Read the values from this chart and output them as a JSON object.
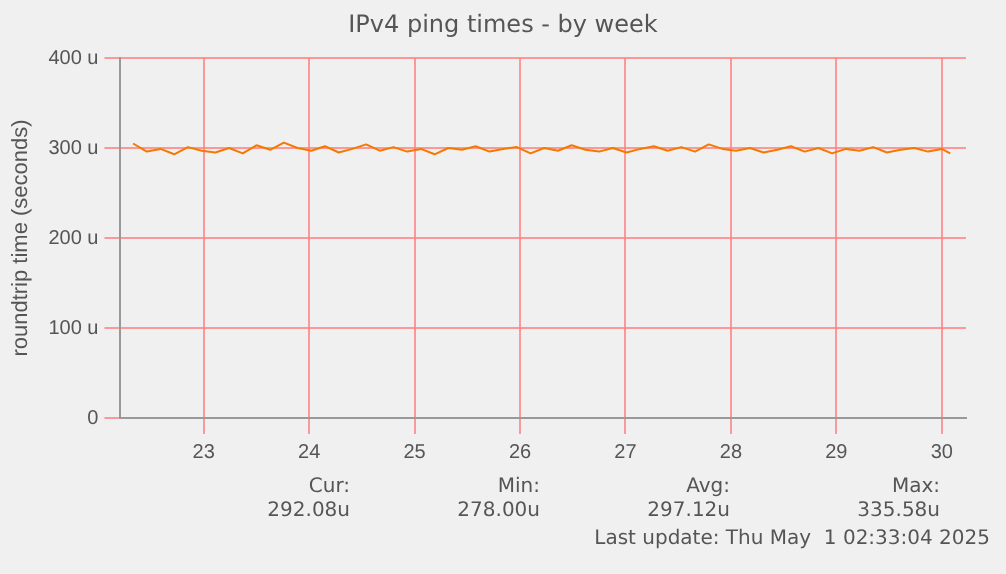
{
  "chart_data": {
    "type": "line",
    "title": "IPv4 ping times - by week",
    "ylabel": "roundtrip time (seconds)",
    "x": [
      22.83,
      22.96,
      23.09,
      23.22,
      23.35,
      23.48,
      23.61,
      23.74,
      23.87,
      24.0,
      24.13,
      24.26,
      24.39,
      24.52,
      24.65,
      24.78,
      24.91,
      25.04,
      25.17,
      25.3,
      25.43,
      25.56,
      25.69,
      25.82,
      25.95,
      26.08,
      26.21,
      26.34,
      26.47,
      26.6,
      26.73,
      26.86,
      26.99,
      27.12,
      27.25,
      27.38,
      27.51,
      27.64,
      27.77,
      27.9,
      28.03,
      28.16,
      28.29,
      28.42,
      28.55,
      28.68,
      28.81,
      28.94,
      29.07,
      29.2,
      29.33,
      29.46,
      29.59,
      29.72,
      29.85,
      29.98,
      30.11,
      30.24,
      30.37,
      30.5,
      30.58
    ],
    "series": [
      {
        "color": "#f57900",
        "values": [
          305,
          296,
          299,
          293,
          301,
          297,
          295,
          300,
          294,
          303,
          298,
          306,
          300,
          297,
          302,
          295,
          299,
          304,
          297,
          301,
          296,
          299,
          293,
          300,
          298,
          302,
          296,
          299,
          301,
          294,
          300,
          297,
          303,
          298,
          296,
          300,
          295,
          299,
          302,
          297,
          301,
          296,
          304,
          299,
          297,
          300,
          295,
          298,
          302,
          296,
          300,
          294,
          299,
          297,
          301,
          295,
          298,
          300,
          296,
          299,
          294
        ]
      }
    ],
    "xlim": [
      22.71,
      30.73
    ],
    "xticks": [
      {
        "value": 23.5,
        "label": "23"
      },
      {
        "value": 24.5,
        "label": "24"
      },
      {
        "value": 25.5,
        "label": "25"
      },
      {
        "value": 26.5,
        "label": "26"
      },
      {
        "value": 27.5,
        "label": "27"
      },
      {
        "value": 28.5,
        "label": "28"
      },
      {
        "value": 29.5,
        "label": "29"
      },
      {
        "value": 30.5,
        "label": "30"
      }
    ],
    "ylim": [
      0,
      400
    ],
    "yticks": [
      {
        "value": 0,
        "label": "0"
      },
      {
        "value": 100,
        "label": "100 u"
      },
      {
        "value": 200,
        "label": "200 u"
      },
      {
        "value": 300,
        "label": "300 u"
      },
      {
        "value": 400,
        "label": "400 u"
      }
    ],
    "grid": true,
    "marker": "none",
    "line_style": "solid",
    "legend": false,
    "annotations": [
      "Cur:",
      "292.08u",
      "Min:",
      "278.00u",
      "Avg:",
      "297.12u",
      "Max:",
      "335.58u",
      "Last update: Thu May  1 02:33:04 2025"
    ]
  }
}
